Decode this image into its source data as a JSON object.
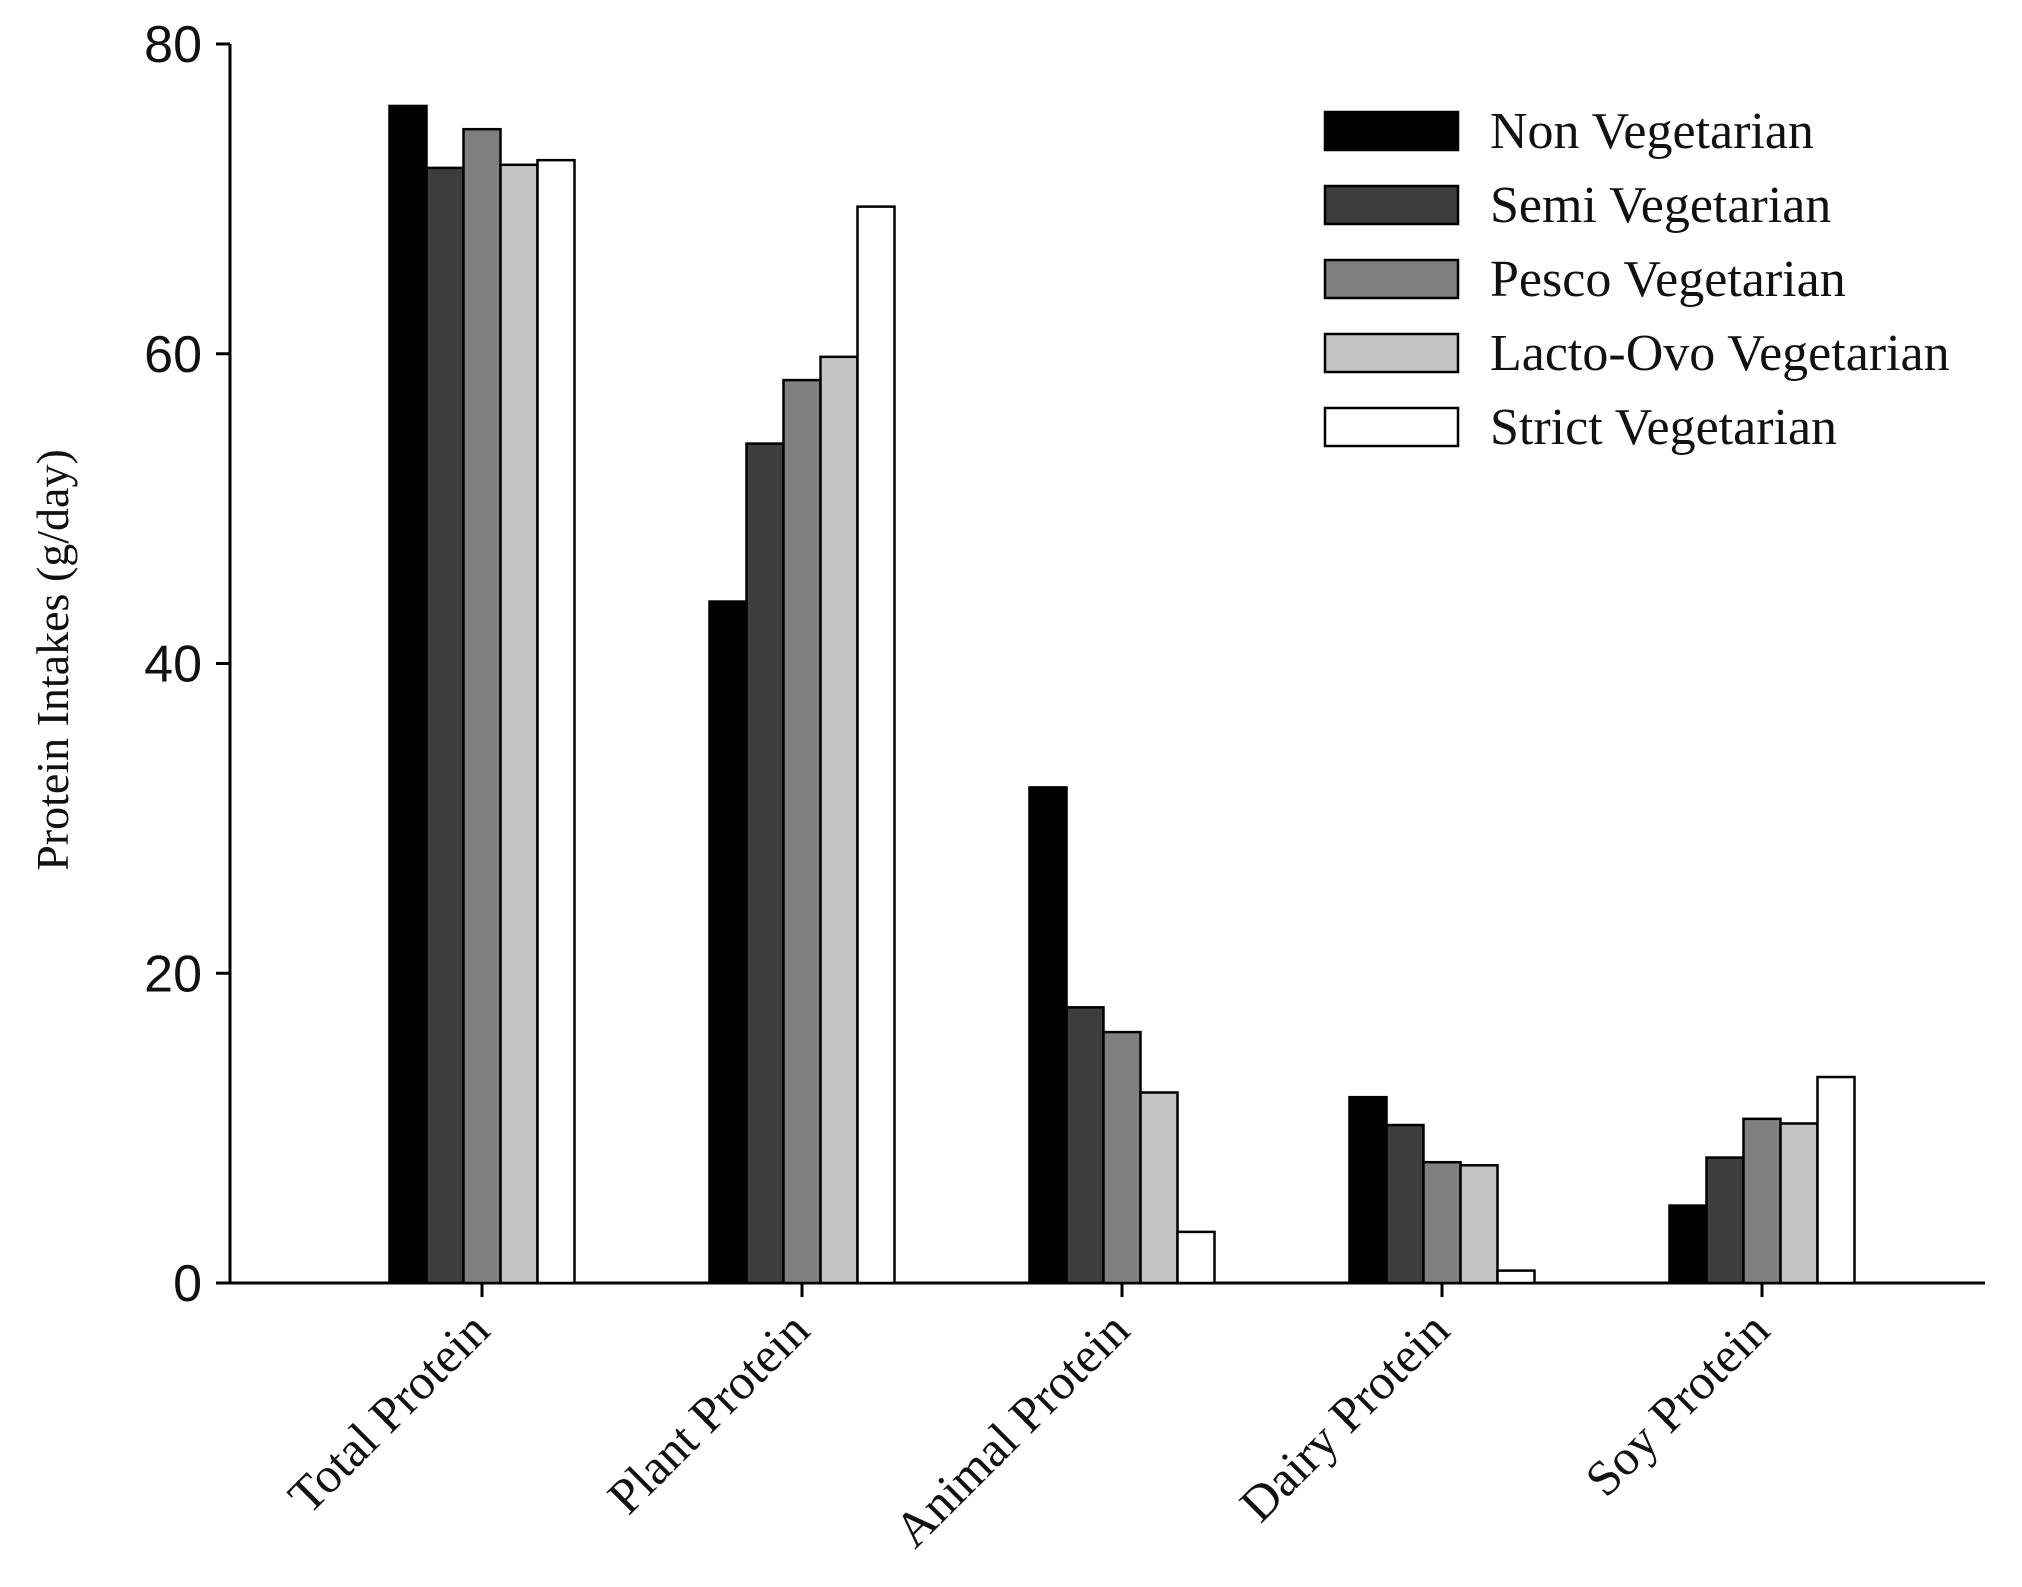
{
  "chart_data": {
    "type": "bar",
    "title": "",
    "xlabel": "",
    "ylabel": "Protein Intakes (g/day)",
    "ylim": [
      0,
      80
    ],
    "yticks": [
      0,
      20,
      40,
      60,
      80
    ],
    "grid": false,
    "legend_position": "top-right",
    "categories": [
      "Total Protein",
      "Plant Protein",
      "Animal Protein",
      "Dairy Protein",
      "Soy Protein"
    ],
    "series": [
      {
        "name": "Non Vegetarian",
        "color": "#000000",
        "values": [
          76,
          44,
          32,
          12,
          5
        ]
      },
      {
        "name": "Semi Vegetarian",
        "color": "#3d3d3d",
        "values": [
          72,
          54.2,
          17.8,
          10.2,
          8.1
        ]
      },
      {
        "name": "Pesco Vegetarian",
        "color": "#808080",
        "values": [
          74.5,
          58.3,
          16.2,
          7.8,
          10.6
        ]
      },
      {
        "name": "Lacto-Ovo Vegetarian",
        "color": "#c4c4c4",
        "values": [
          72.2,
          59.8,
          12.3,
          7.6,
          10.3
        ]
      },
      {
        "name": "Strict Vegetarian",
        "color": "#ffffff",
        "values": [
          72.5,
          69.5,
          3.3,
          0.8,
          13.3
        ]
      }
    ]
  }
}
